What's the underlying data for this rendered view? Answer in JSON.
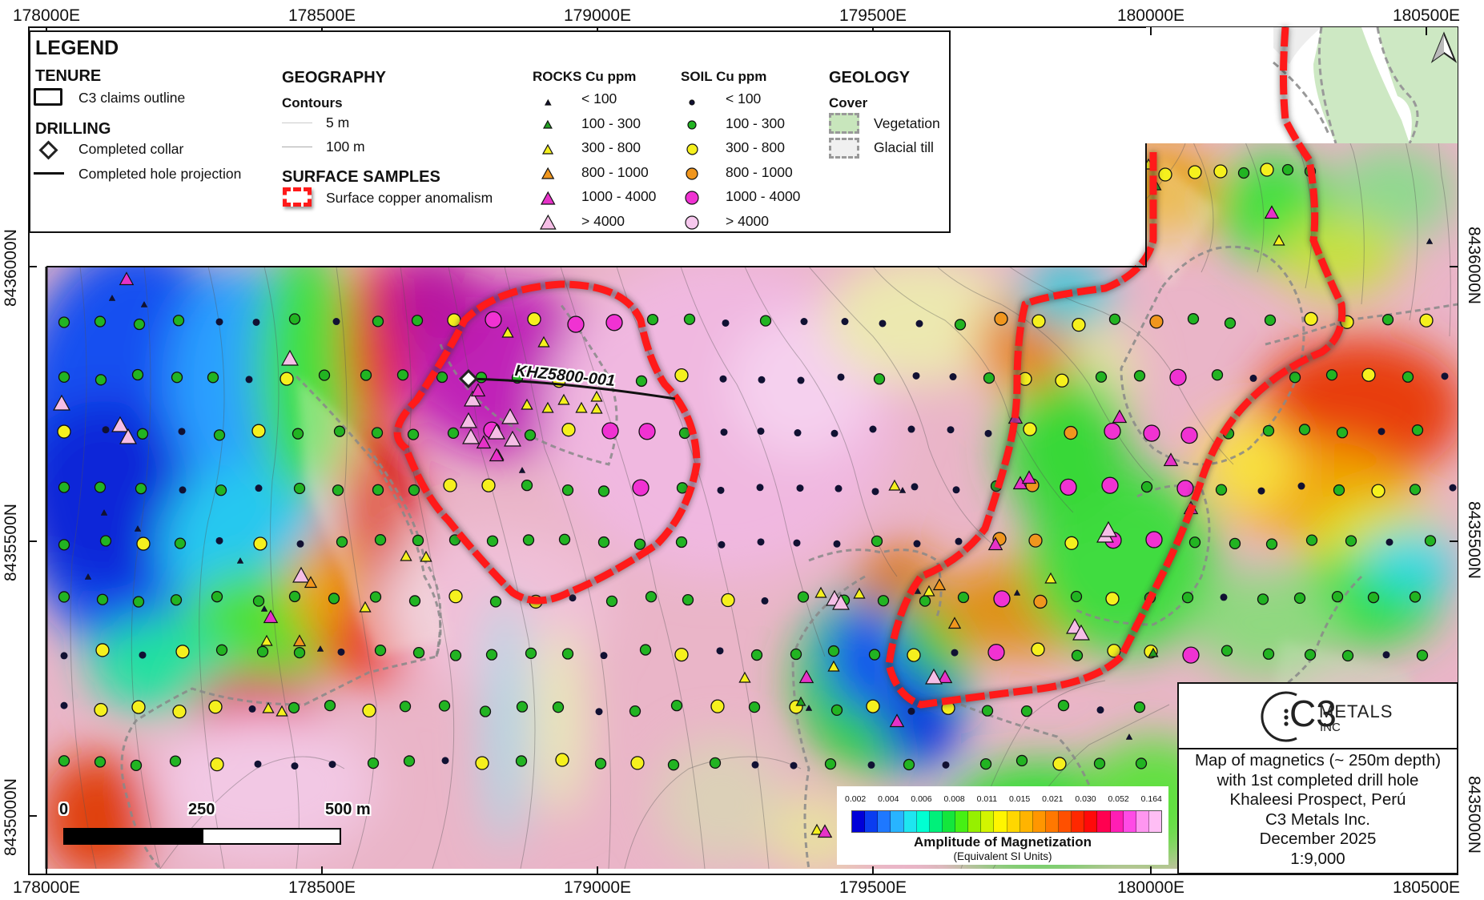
{
  "map": {
    "title_lines": [
      "Map of magnetics (~ 250m depth)",
      "with 1st completed drill hole",
      "Khaleesi Prospect, Perú",
      "C3 Metals Inc.",
      "December 2025",
      "1:9,000"
    ],
    "scale": "1:9,000",
    "company_logo": {
      "mark": "C3",
      "name": "METALS",
      "suffix": "INC"
    },
    "drill_hole": {
      "id": "KHZ5800-001"
    },
    "north_arrow": "north-arrow-icon"
  },
  "axes": {
    "top": [
      "178000E",
      "178500E",
      "179000E",
      "179500E",
      "180000E",
      "180500E"
    ],
    "bottom": [
      "178000E",
      "178500E",
      "179000E",
      "179500E",
      "180000E",
      "180500E"
    ],
    "left": [
      "8436000N",
      "8435500N",
      "8435000N"
    ],
    "right": [
      "8436000N",
      "8435500N",
      "8435000N"
    ]
  },
  "scale_bar": {
    "labels": [
      "0",
      "250",
      "500 m"
    ]
  },
  "colorbar": {
    "ticks": [
      "0.002",
      "0.004",
      "0.006",
      "0.008",
      "0.011",
      "0.015",
      "0.021",
      "0.030",
      "0.052",
      "0.164"
    ],
    "colors": [
      "#0000d8",
      "#0a3cf0",
      "#1e78ff",
      "#28b4ff",
      "#1ee6f0",
      "#00ffd2",
      "#00f07a",
      "#14e63c",
      "#46f014",
      "#96f000",
      "#d2f500",
      "#fff500",
      "#ffd700",
      "#ffb400",
      "#ff9600",
      "#ff7800",
      "#ff5000",
      "#ff2800",
      "#ff0a0a",
      "#ff0050",
      "#ff1eb4",
      "#ff4be6",
      "#ff96f0",
      "#ffbef5"
    ],
    "title": "Amplitude of Magnetization",
    "subtitle": "(Equivalent SI Units)"
  },
  "legend": {
    "title": "LEGEND",
    "tenure": {
      "heading": "TENURE",
      "items": [
        {
          "label": "C3 claims outline"
        }
      ]
    },
    "drilling": {
      "heading": "DRILLING",
      "items": [
        {
          "label": "Completed collar"
        },
        {
          "label": "Completed hole projection"
        }
      ]
    },
    "geography": {
      "heading": "GEOGRAPHY",
      "subheading": "Contours",
      "items": [
        {
          "label": "5 m"
        },
        {
          "label": "100 m"
        }
      ]
    },
    "surface_samples": {
      "heading": "SURFACE SAMPLES",
      "items": [
        {
          "label": "Surface copper anomalism"
        }
      ]
    },
    "rocks": {
      "heading": "ROCKS Cu ppm",
      "items": [
        {
          "label": "< 100",
          "color": "#111133"
        },
        {
          "label": "100 - 300",
          "color": "#22a022"
        },
        {
          "label": "300 - 800",
          "color": "#f5f01e"
        },
        {
          "label": "800 - 1000",
          "color": "#f0961e"
        },
        {
          "label": "1000 - 4000",
          "color": "#e632c8"
        },
        {
          "label": "> 4000",
          "color": "#f5bee6"
        }
      ]
    },
    "soil": {
      "heading": "SOIL Cu ppm",
      "items": [
        {
          "label": "< 100",
          "color": "#111133"
        },
        {
          "label": "100 - 300",
          "color": "#22b422"
        },
        {
          "label": "300 - 800",
          "color": "#f5f01e"
        },
        {
          "label": "800 - 1000",
          "color": "#f0961e"
        },
        {
          "label": "1000 - 4000",
          "color": "#f032d2"
        },
        {
          "label": "> 4000",
          "color": "#f7c8ee"
        }
      ]
    },
    "geology": {
      "heading": "GEOLOGY",
      "subheading": "Cover",
      "items": [
        {
          "label": "Vegetation",
          "color": "#c8e6bc"
        },
        {
          "label": "Glacial till",
          "color": "#f0f0f0"
        }
      ]
    }
  },
  "colors": {
    "claims_outline": "#ff1a1a",
    "frame": "#111111"
  }
}
